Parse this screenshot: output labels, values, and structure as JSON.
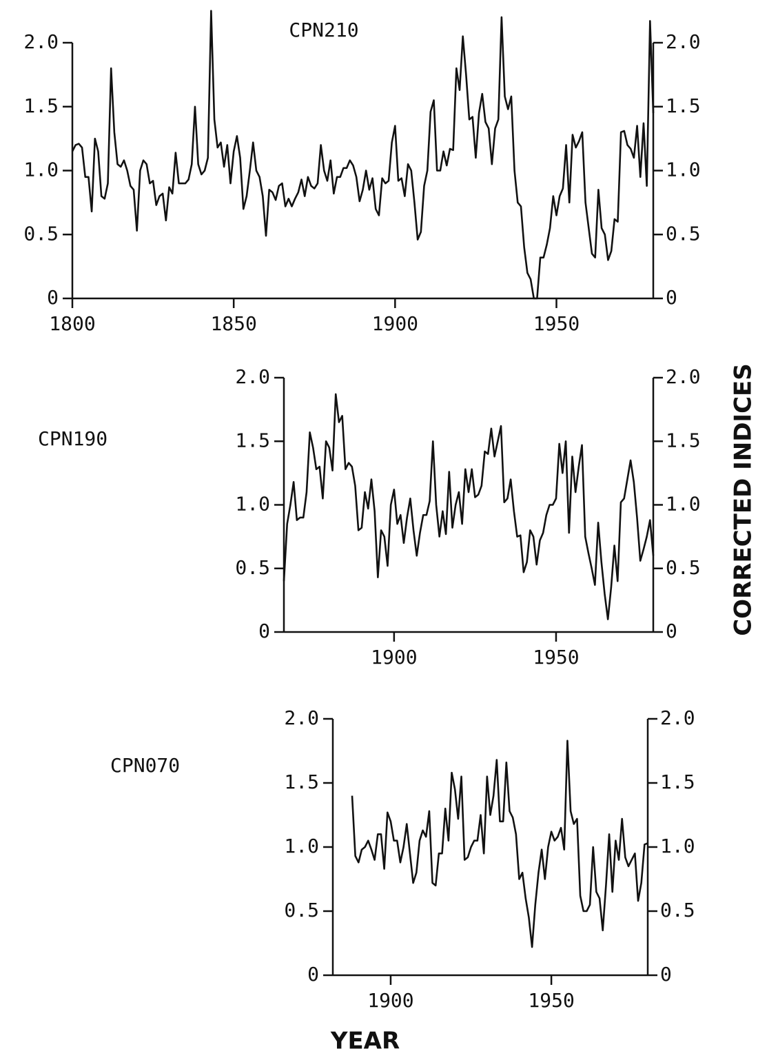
{
  "figure": {
    "y_label": "CORRECTED INDICES",
    "x_label": "YEAR"
  },
  "chart_data": [
    {
      "type": "line",
      "title": "CPN210",
      "color": "#111111",
      "xlim": [
        1800,
        1980
      ],
      "ylim": [
        0,
        2
      ],
      "xticks": [
        1800,
        1850,
        1900,
        1950
      ],
      "yticks": [
        0,
        0.5,
        {
          "value": 1,
          "label": "1.0"
        },
        1.5,
        {
          "value": 2,
          "label": "2.0"
        }
      ],
      "x": [
        1800,
        1801,
        1802,
        1803,
        1804,
        1805,
        1806,
        1807,
        1808,
        1809,
        1810,
        1811,
        1812,
        1813,
        1814,
        1815,
        1816,
        1817,
        1818,
        1819,
        1820,
        1821,
        1822,
        1823,
        1824,
        1825,
        1826,
        1827,
        1828,
        1829,
        1830,
        1831,
        1832,
        1833,
        1834,
        1835,
        1836,
        1837,
        1838,
        1839,
        1840,
        1841,
        1842,
        1843,
        1844,
        1845,
        1846,
        1847,
        1848,
        1849,
        1850,
        1851,
        1852,
        1853,
        1854,
        1855,
        1856,
        1857,
        1858,
        1859,
        1860,
        1861,
        1862,
        1863,
        1864,
        1865,
        1866,
        1867,
        1868,
        1869,
        1870,
        1871,
        1872,
        1873,
        1874,
        1875,
        1876,
        1877,
        1878,
        1879,
        1880,
        1881,
        1882,
        1883,
        1884,
        1885,
        1886,
        1887,
        1888,
        1889,
        1890,
        1891,
        1892,
        1893,
        1894,
        1895,
        1896,
        1897,
        1898,
        1899,
        1900,
        1901,
        1902,
        1903,
        1904,
        1905,
        1906,
        1907,
        1908,
        1909,
        1910,
        1911,
        1912,
        1913,
        1914,
        1915,
        1916,
        1917,
        1918,
        1919,
        1920,
        1921,
        1922,
        1923,
        1924,
        1925,
        1926,
        1927,
        1928,
        1929,
        1930,
        1931,
        1932,
        1933,
        1934,
        1935,
        1936,
        1937,
        1938,
        1939,
        1940,
        1941,
        1942,
        1943,
        1944,
        1945,
        1946,
        1947,
        1948,
        1949,
        1950,
        1951,
        1952,
        1953,
        1954,
        1955,
        1956,
        1957,
        1958,
        1959,
        1960,
        1961,
        1962,
        1963,
        1964,
        1965,
        1966,
        1967,
        1968,
        1969,
        1970,
        1971,
        1972,
        1973,
        1974,
        1975,
        1976,
        1977,
        1978,
        1979,
        1980
      ],
      "values": [
        1.15,
        1.2,
        1.21,
        1.18,
        0.95,
        0.95,
        0.68,
        1.25,
        1.15,
        0.8,
        0.78,
        0.9,
        1.8,
        1.3,
        1.05,
        1.03,
        1.08,
        1.0,
        0.88,
        0.85,
        0.53,
        1.0,
        1.08,
        1.05,
        0.9,
        0.92,
        0.73,
        0.8,
        0.82,
        0.61,
        0.87,
        0.82,
        1.14,
        0.9,
        0.9,
        0.9,
        0.93,
        1.05,
        1.5,
        1.05,
        0.97,
        1.0,
        1.1,
        2.25,
        1.4,
        1.18,
        1.22,
        1.03,
        1.2,
        0.9,
        1.15,
        1.27,
        1.1,
        0.7,
        0.8,
        1.0,
        1.22,
        1.0,
        0.95,
        0.8,
        0.49,
        0.85,
        0.83,
        0.77,
        0.88,
        0.9,
        0.72,
        0.78,
        0.72,
        0.78,
        0.83,
        0.93,
        0.8,
        0.95,
        0.88,
        0.86,
        0.9,
        1.2,
        1.0,
        0.92,
        1.08,
        0.82,
        0.95,
        0.95,
        1.02,
        1.02,
        1.08,
        1.04,
        0.95,
        0.76,
        0.85,
        1.0,
        0.85,
        0.94,
        0.7,
        0.65,
        0.94,
        0.9,
        0.92,
        1.22,
        1.35,
        0.92,
        0.94,
        0.8,
        1.05,
        1.0,
        0.75,
        0.46,
        0.52,
        0.88,
        1.0,
        1.46,
        1.55,
        1.0,
        1.0,
        1.15,
        1.04,
        1.17,
        1.16,
        1.8,
        1.63,
        2.05,
        1.75,
        1.4,
        1.42,
        1.1,
        1.45,
        1.6,
        1.38,
        1.33,
        1.05,
        1.33,
        1.4,
        2.2,
        1.58,
        1.48,
        1.58,
        1.0,
        0.75,
        0.72,
        0.4,
        0.2,
        0.15,
        0.0,
        0.0,
        0.32,
        0.32,
        0.42,
        0.55,
        0.8,
        0.65,
        0.8,
        0.86,
        1.2,
        0.75,
        1.28,
        1.18,
        1.23,
        1.3,
        0.75,
        0.55,
        0.35,
        0.32,
        0.85,
        0.55,
        0.5,
        0.3,
        0.37,
        0.62,
        0.6,
        1.3,
        1.31,
        1.2,
        1.17,
        1.1,
        1.35,
        0.95,
        1.37,
        0.88,
        2.17,
        1.45
      ]
    },
    {
      "type": "line",
      "title": "CPN190",
      "color": "#111111",
      "xlim": [
        1866,
        1980
      ],
      "ylim": [
        0,
        2
      ],
      "xticks": [
        1900,
        1950
      ],
      "yticks": [
        0,
        0.5,
        {
          "value": 1,
          "label": "1.0"
        },
        1.5,
        {
          "value": 2,
          "label": "2.0"
        }
      ],
      "x": [
        1866,
        1867,
        1868,
        1869,
        1870,
        1871,
        1872,
        1873,
        1874,
        1875,
        1876,
        1877,
        1878,
        1879,
        1880,
        1881,
        1882,
        1883,
        1884,
        1885,
        1886,
        1887,
        1888,
        1889,
        1890,
        1891,
        1892,
        1893,
        1894,
        1895,
        1896,
        1897,
        1898,
        1899,
        1900,
        1901,
        1902,
        1903,
        1904,
        1905,
        1906,
        1907,
        1908,
        1909,
        1910,
        1911,
        1912,
        1913,
        1914,
        1915,
        1916,
        1917,
        1918,
        1919,
        1920,
        1921,
        1922,
        1923,
        1924,
        1925,
        1926,
        1927,
        1928,
        1929,
        1930,
        1931,
        1932,
        1933,
        1934,
        1935,
        1936,
        1937,
        1938,
        1939,
        1940,
        1941,
        1942,
        1943,
        1944,
        1945,
        1946,
        1947,
        1948,
        1949,
        1950,
        1951,
        1952,
        1953,
        1954,
        1955,
        1956,
        1957,
        1958,
        1959,
        1960,
        1961,
        1962,
        1963,
        1964,
        1965,
        1966,
        1967,
        1968,
        1969,
        1970,
        1971,
        1972,
        1973,
        1974,
        1975,
        1976,
        1977,
        1978,
        1979,
        1980
      ],
      "values": [
        0.4,
        0.85,
        1.0,
        1.18,
        0.88,
        0.9,
        0.9,
        1.1,
        1.57,
        1.45,
        1.28,
        1.3,
        1.05,
        1.5,
        1.45,
        1.27,
        1.87,
        1.65,
        1.7,
        1.28,
        1.33,
        1.3,
        1.15,
        0.8,
        0.82,
        1.1,
        0.97,
        1.2,
        0.95,
        0.43,
        0.8,
        0.75,
        0.52,
        1.0,
        1.12,
        0.85,
        0.92,
        0.7,
        0.9,
        1.05,
        0.8,
        0.6,
        0.78,
        0.92,
        0.92,
        1.03,
        1.5,
        1.0,
        0.75,
        0.95,
        0.77,
        1.26,
        0.82,
        1.0,
        1.1,
        0.85,
        1.28,
        1.1,
        1.28,
        1.06,
        1.08,
        1.15,
        1.42,
        1.4,
        1.6,
        1.38,
        1.5,
        1.62,
        1.02,
        1.05,
        1.2,
        0.95,
        0.75,
        0.76,
        0.47,
        0.55,
        0.8,
        0.75,
        0.53,
        0.72,
        0.78,
        0.92,
        1.0,
        1.0,
        1.05,
        1.48,
        1.25,
        1.5,
        0.78,
        1.38,
        1.1,
        1.3,
        1.47,
        0.75,
        0.62,
        0.5,
        0.37,
        0.86,
        0.55,
        0.3,
        0.1,
        0.35,
        0.68,
        0.4,
        1.02,
        1.05,
        1.2,
        1.35,
        1.18,
        0.9,
        0.56,
        0.65,
        0.75,
        0.88,
        0.6
      ]
    },
    {
      "type": "line",
      "title": "CPN070",
      "color": "#111111",
      "xlim": [
        1882,
        1980
      ],
      "ylim": [
        0,
        2
      ],
      "xticks": [
        1900,
        1950
      ],
      "yticks": [
        0,
        0.5,
        {
          "value": 1,
          "label": "1.0"
        },
        1.5,
        {
          "value": 2,
          "label": "2.0"
        }
      ],
      "x": [
        1888,
        1889,
        1890,
        1891,
        1892,
        1893,
        1894,
        1895,
        1896,
        1897,
        1898,
        1899,
        1900,
        1901,
        1902,
        1903,
        1904,
        1905,
        1906,
        1907,
        1908,
        1909,
        1910,
        1911,
        1912,
        1913,
        1914,
        1915,
        1916,
        1917,
        1918,
        1919,
        1920,
        1921,
        1922,
        1923,
        1924,
        1925,
        1926,
        1927,
        1928,
        1929,
        1930,
        1931,
        1932,
        1933,
        1934,
        1935,
        1936,
        1937,
        1938,
        1939,
        1940,
        1941,
        1942,
        1943,
        1944,
        1945,
        1946,
        1947,
        1948,
        1949,
        1950,
        1951,
        1952,
        1953,
        1954,
        1955,
        1956,
        1957,
        1958,
        1959,
        1960,
        1961,
        1962,
        1963,
        1964,
        1965,
        1966,
        1967,
        1968,
        1969,
        1970,
        1971,
        1972,
        1973,
        1974,
        1975,
        1976,
        1977,
        1978,
        1979,
        1980
      ],
      "values": [
        1.4,
        0.93,
        0.88,
        0.98,
        1.0,
        1.05,
        0.98,
        0.9,
        1.1,
        1.1,
        0.83,
        1.27,
        1.2,
        1.05,
        1.05,
        0.88,
        1.0,
        1.18,
        0.95,
        0.72,
        0.8,
        1.05,
        1.13,
        1.08,
        1.28,
        0.72,
        0.7,
        0.95,
        0.95,
        1.3,
        1.05,
        1.58,
        1.45,
        1.22,
        1.55,
        0.9,
        0.92,
        1.0,
        1.05,
        1.05,
        1.25,
        0.95,
        1.55,
        1.25,
        1.4,
        1.68,
        1.2,
        1.2,
        1.66,
        1.28,
        1.23,
        1.1,
        0.75,
        0.8,
        0.6,
        0.45,
        0.22,
        0.55,
        0.8,
        0.98,
        0.75,
        1.0,
        1.12,
        1.05,
        1.08,
        1.15,
        0.98,
        1.83,
        1.28,
        1.18,
        1.22,
        0.62,
        0.5,
        0.5,
        0.55,
        1.0,
        0.65,
        0.6,
        0.35,
        0.7,
        1.1,
        0.65,
        1.05,
        0.9,
        1.22,
        0.92,
        0.85,
        0.9,
        0.95,
        0.58,
        0.72,
        1.02,
        1.03
      ]
    }
  ]
}
